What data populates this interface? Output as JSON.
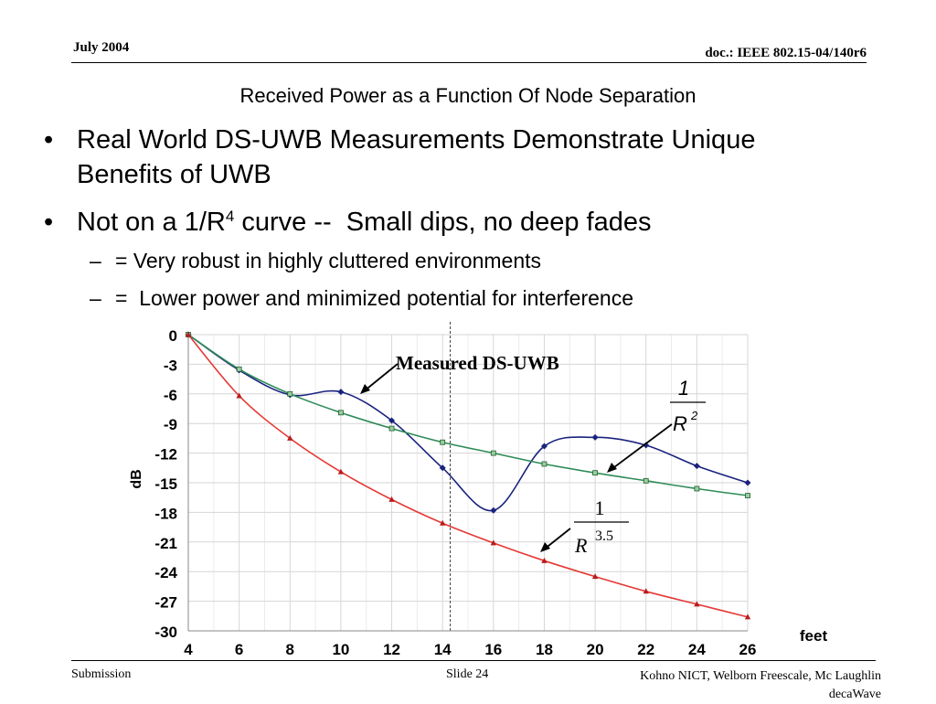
{
  "header": {
    "date": "July 2004",
    "doc_id": "doc.: IEEE 802.15-04/140r6"
  },
  "slide": {
    "title": "Received Power as a Function Of Node Separation",
    "bullets": [
      {
        "marker": "•",
        "line1": "Real World DS-UWB Measurements Demonstrate Unique",
        "line2": "Benefits of UWB"
      },
      {
        "marker": "•",
        "text_before": "Not on a 1/R",
        "superscript": "4",
        "text_after": " curve --  Small dips, no deep fades"
      }
    ],
    "sub_bullets": [
      {
        "marker": "–",
        "text": "= Very robust in highly cluttered environments"
      },
      {
        "marker": "–",
        "text": "=  Lower power and minimized potential for interference"
      }
    ]
  },
  "footer": {
    "left": "Submission",
    "middle": "Slide 24",
    "right_line1": "Kohno NICT, Welborn Freescale, Mc Laughlin",
    "right_line2": "decaWave"
  },
  "chart_data": {
    "type": "line",
    "title": "",
    "xlabel": "feet",
    "ylabel": "dB",
    "xlim": [
      4,
      26
    ],
    "ylim": [
      -30,
      0
    ],
    "x_ticks": [
      "4",
      "6",
      "8",
      "10",
      "12",
      "14",
      "16",
      "18",
      "20",
      "22",
      "24",
      "26"
    ],
    "y_ticks": [
      "0",
      "-3",
      "-6",
      "-9",
      "-12",
      "-15",
      "-18",
      "-21",
      "-24",
      "-27",
      "-30"
    ],
    "grid": true,
    "reference_line_x": 14.3,
    "x": [
      4,
      6,
      8,
      10,
      12,
      14,
      16,
      18,
      20,
      22,
      24,
      26
    ],
    "series": [
      {
        "name": "Measured DS-UWB",
        "color": "#1a237e",
        "marker": "diamond",
        "values": [
          0,
          -3.6,
          -6.1,
          -5.8,
          -8.7,
          -13.5,
          -17.8,
          -11.3,
          -10.4,
          -11.2,
          -13.3,
          -15.0
        ]
      },
      {
        "name": "1/R^2",
        "color": "#2e8b57",
        "marker": "square",
        "values": [
          0,
          -3.5,
          -6.0,
          -7.9,
          -9.5,
          -10.9,
          -12.0,
          -13.1,
          -14.0,
          -14.8,
          -15.6,
          -16.3
        ]
      },
      {
        "name": "1/R^3.5",
        "color": "#e53935",
        "marker": "triangle",
        "values": [
          0,
          -6.2,
          -10.5,
          -13.9,
          -16.7,
          -19.1,
          -21.1,
          -22.9,
          -24.5,
          -26.0,
          -27.3,
          -28.6
        ]
      }
    ],
    "annotations": [
      {
        "label": "Measured DS-UWB"
      },
      {
        "numerator": "1",
        "denominator": "R",
        "exponent": "2"
      },
      {
        "numerator": "1",
        "denominator": "R",
        "exponent": "3.5"
      }
    ]
  }
}
